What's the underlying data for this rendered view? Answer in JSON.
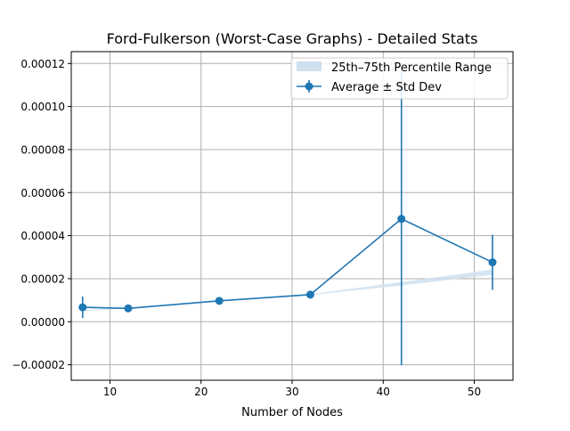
{
  "chart_data": {
    "type": "line",
    "title": "Ford-Fulkerson (Worst-Case Graphs) - Detailed Stats",
    "xlabel": "Number of Nodes",
    "ylabel": "",
    "xlim": [
      5.75,
      54.25
    ],
    "ylim": [
      -2.72e-05,
      0.0001255
    ],
    "grid": true,
    "legend_position": "top-right",
    "x_ticks": [
      10,
      20,
      30,
      40,
      50
    ],
    "x_tick_labels": [
      "10",
      "20",
      "30",
      "40",
      "50"
    ],
    "y_ticks": [
      -2e-05,
      0,
      2e-05,
      4e-05,
      6e-05,
      8e-05,
      0.0001,
      0.00012
    ],
    "y_tick_labels": [
      "−0.00002",
      "0.00000",
      "0.00002",
      "0.00004",
      "0.00006",
      "0.00008",
      "0.00010",
      "0.00012"
    ],
    "series": [
      {
        "name": "Average ± Std Dev",
        "color": "#1f77b4",
        "x": [
          7,
          12,
          22,
          32,
          42,
          52
        ],
        "y": [
          6.7e-06,
          6.2e-06,
          9.7e-06,
          1.26e-05,
          4.78e-05,
          2.76e-05
        ],
        "yerr": [
          5e-06,
          5e-07,
          5e-07,
          4e-07,
          6.8e-05,
          1.28e-05
        ]
      },
      {
        "name": "25th–75th Percentile Range",
        "color": "#cfe0ef",
        "type": "band",
        "x": [
          7,
          12,
          22,
          32,
          42,
          52
        ],
        "low": [
          5e-06,
          6.2e-06,
          9.4e-06,
          1.24e-05,
          1.68e-05,
          2.18e-05
        ],
        "high": [
          5.5e-06,
          6.4e-06,
          9.9e-06,
          1.28e-05,
          1.85e-05,
          2.42e-05
        ]
      }
    ]
  }
}
